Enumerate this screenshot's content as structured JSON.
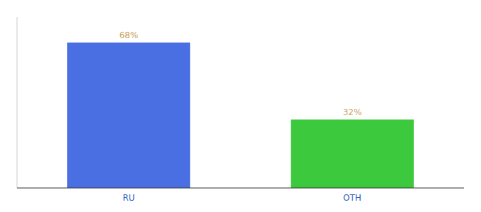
{
  "chart_data": {
    "type": "bar",
    "categories": [
      "RU",
      "OTH"
    ],
    "values": [
      68,
      32
    ],
    "value_labels": [
      "68%",
      "32%"
    ],
    "colors": [
      "#4A6FE3",
      "#3DC93D"
    ],
    "ylim": [
      0,
      80
    ],
    "data_labels": true,
    "tick_labels": "x"
  }
}
